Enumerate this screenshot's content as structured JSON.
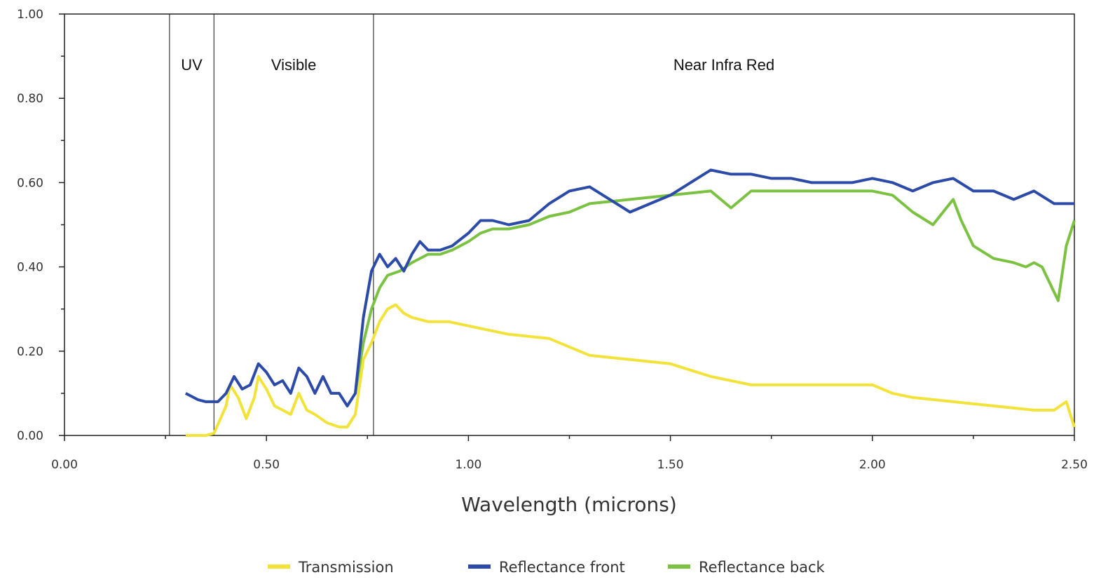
{
  "chart_data": {
    "type": "line",
    "title": "",
    "xlabel": "Wavelength (microns)",
    "ylabel": "",
    "xlim": [
      0,
      2.5
    ],
    "ylim": [
      0,
      1.0
    ],
    "x_ticks": [
      "0.00",
      "0.50",
      "1.00",
      "1.50",
      "2.00",
      "2.50"
    ],
    "y_ticks": [
      "0.00",
      "0.20",
      "0.40",
      "0.60",
      "0.80",
      "1.00"
    ],
    "grid": false,
    "legend_position": "bottom",
    "regions": [
      {
        "label": "UV",
        "x_start": 0.26,
        "x_end": 0.37
      },
      {
        "label": "Visible",
        "x_start": 0.37,
        "x_end": 0.765
      },
      {
        "label": "Near  Infra Red",
        "x_start": 0.765,
        "x_end": 2.5
      }
    ],
    "series": [
      {
        "name": "Transmission",
        "color": "#f2e33a",
        "points": [
          [
            0.3,
            0.0
          ],
          [
            0.35,
            0.0
          ],
          [
            0.37,
            0.005
          ],
          [
            0.4,
            0.07
          ],
          [
            0.41,
            0.12
          ],
          [
            0.43,
            0.09
          ],
          [
            0.45,
            0.04
          ],
          [
            0.47,
            0.09
          ],
          [
            0.48,
            0.14
          ],
          [
            0.5,
            0.11
          ],
          [
            0.52,
            0.07
          ],
          [
            0.54,
            0.06
          ],
          [
            0.56,
            0.05
          ],
          [
            0.58,
            0.1
          ],
          [
            0.6,
            0.06
          ],
          [
            0.62,
            0.05
          ],
          [
            0.65,
            0.03
          ],
          [
            0.68,
            0.02
          ],
          [
            0.7,
            0.02
          ],
          [
            0.72,
            0.05
          ],
          [
            0.74,
            0.18
          ],
          [
            0.76,
            0.22
          ],
          [
            0.78,
            0.27
          ],
          [
            0.8,
            0.3
          ],
          [
            0.82,
            0.31
          ],
          [
            0.84,
            0.29
          ],
          [
            0.86,
            0.28
          ],
          [
            0.9,
            0.27
          ],
          [
            0.95,
            0.27
          ],
          [
            1.0,
            0.26
          ],
          [
            1.05,
            0.25
          ],
          [
            1.1,
            0.24
          ],
          [
            1.2,
            0.23
          ],
          [
            1.25,
            0.21
          ],
          [
            1.3,
            0.19
          ],
          [
            1.4,
            0.18
          ],
          [
            1.5,
            0.17
          ],
          [
            1.6,
            0.14
          ],
          [
            1.7,
            0.12
          ],
          [
            1.8,
            0.12
          ],
          [
            1.9,
            0.12
          ],
          [
            2.0,
            0.12
          ],
          [
            2.05,
            0.1
          ],
          [
            2.1,
            0.09
          ],
          [
            2.2,
            0.08
          ],
          [
            2.3,
            0.07
          ],
          [
            2.4,
            0.06
          ],
          [
            2.45,
            0.06
          ],
          [
            2.48,
            0.08
          ],
          [
            2.5,
            0.02
          ]
        ]
      },
      {
        "name": "Reflectance front",
        "color": "#2c4aa8",
        "points": [
          [
            0.3,
            0.1
          ],
          [
            0.33,
            0.085
          ],
          [
            0.35,
            0.08
          ],
          [
            0.38,
            0.08
          ],
          [
            0.4,
            0.1
          ],
          [
            0.42,
            0.14
          ],
          [
            0.44,
            0.11
          ],
          [
            0.46,
            0.12
          ],
          [
            0.48,
            0.17
          ],
          [
            0.5,
            0.15
          ],
          [
            0.52,
            0.12
          ],
          [
            0.54,
            0.13
          ],
          [
            0.56,
            0.1
          ],
          [
            0.58,
            0.16
          ],
          [
            0.6,
            0.14
          ],
          [
            0.62,
            0.1
          ],
          [
            0.64,
            0.14
          ],
          [
            0.66,
            0.1
          ],
          [
            0.68,
            0.1
          ],
          [
            0.7,
            0.07
          ],
          [
            0.72,
            0.1
          ],
          [
            0.74,
            0.28
          ],
          [
            0.76,
            0.39
          ],
          [
            0.78,
            0.43
          ],
          [
            0.8,
            0.4
          ],
          [
            0.82,
            0.42
          ],
          [
            0.84,
            0.39
          ],
          [
            0.86,
            0.43
          ],
          [
            0.88,
            0.46
          ],
          [
            0.9,
            0.44
          ],
          [
            0.93,
            0.44
          ],
          [
            0.96,
            0.45
          ],
          [
            1.0,
            0.48
          ],
          [
            1.03,
            0.51
          ],
          [
            1.06,
            0.51
          ],
          [
            1.1,
            0.5
          ],
          [
            1.15,
            0.51
          ],
          [
            1.2,
            0.55
          ],
          [
            1.25,
            0.58
          ],
          [
            1.3,
            0.59
          ],
          [
            1.35,
            0.56
          ],
          [
            1.4,
            0.53
          ],
          [
            1.45,
            0.55
          ],
          [
            1.5,
            0.57
          ],
          [
            1.55,
            0.6
          ],
          [
            1.6,
            0.63
          ],
          [
            1.65,
            0.62
          ],
          [
            1.7,
            0.62
          ],
          [
            1.75,
            0.61
          ],
          [
            1.8,
            0.61
          ],
          [
            1.85,
            0.6
          ],
          [
            1.9,
            0.6
          ],
          [
            1.95,
            0.6
          ],
          [
            2.0,
            0.61
          ],
          [
            2.05,
            0.6
          ],
          [
            2.1,
            0.58
          ],
          [
            2.15,
            0.6
          ],
          [
            2.2,
            0.61
          ],
          [
            2.25,
            0.58
          ],
          [
            2.3,
            0.58
          ],
          [
            2.35,
            0.56
          ],
          [
            2.4,
            0.58
          ],
          [
            2.45,
            0.55
          ],
          [
            2.5,
            0.55
          ]
        ]
      },
      {
        "name": "Reflectance back",
        "color": "#7cc242",
        "points": [
          [
            0.72,
            0.1
          ],
          [
            0.74,
            0.22
          ],
          [
            0.76,
            0.3
          ],
          [
            0.78,
            0.35
          ],
          [
            0.8,
            0.38
          ],
          [
            0.83,
            0.39
          ],
          [
            0.86,
            0.41
          ],
          [
            0.88,
            0.42
          ],
          [
            0.9,
            0.43
          ],
          [
            0.93,
            0.43
          ],
          [
            0.96,
            0.44
          ],
          [
            1.0,
            0.46
          ],
          [
            1.03,
            0.48
          ],
          [
            1.06,
            0.49
          ],
          [
            1.1,
            0.49
          ],
          [
            1.15,
            0.5
          ],
          [
            1.2,
            0.52
          ],
          [
            1.25,
            0.53
          ],
          [
            1.3,
            0.55
          ],
          [
            1.4,
            0.56
          ],
          [
            1.5,
            0.57
          ],
          [
            1.6,
            0.58
          ],
          [
            1.65,
            0.54
          ],
          [
            1.7,
            0.58
          ],
          [
            1.8,
            0.58
          ],
          [
            1.9,
            0.58
          ],
          [
            2.0,
            0.58
          ],
          [
            2.05,
            0.57
          ],
          [
            2.1,
            0.53
          ],
          [
            2.15,
            0.5
          ],
          [
            2.2,
            0.56
          ],
          [
            2.22,
            0.51
          ],
          [
            2.25,
            0.45
          ],
          [
            2.3,
            0.42
          ],
          [
            2.35,
            0.41
          ],
          [
            2.38,
            0.4
          ],
          [
            2.4,
            0.41
          ],
          [
            2.42,
            0.4
          ],
          [
            2.44,
            0.36
          ],
          [
            2.46,
            0.32
          ],
          [
            2.48,
            0.45
          ],
          [
            2.5,
            0.51
          ]
        ]
      }
    ]
  }
}
